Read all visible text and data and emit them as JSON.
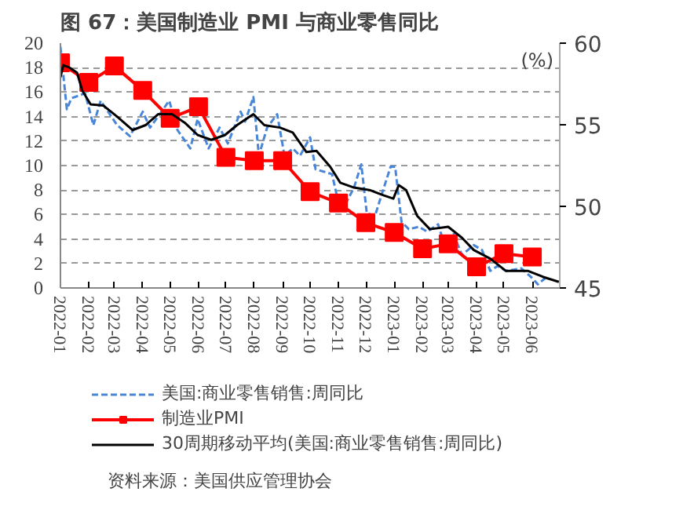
{
  "chart_data": {
    "type": "line",
    "title": "图 67：美国制造业 PMI 与商业零售同比",
    "y2label": "(%)",
    "annotations": [
      "资料来源：美国供应管理协会"
    ],
    "xlim": [
      "2022-01-01",
      "2023-07-01"
    ],
    "xticks": [
      "2022-01",
      "2022-02",
      "2022-03",
      "2022-04",
      "2022-05",
      "2022-06",
      "2022-07",
      "2022-08",
      "2022-09",
      "2022-10",
      "2022-11",
      "2022-12",
      "2023-01",
      "2023-02",
      "2023-03",
      "2023-04",
      "2023-05",
      "2023-06"
    ],
    "ylim": [
      0,
      20
    ],
    "yticks": [
      0,
      2,
      4,
      6,
      8,
      10,
      12,
      14,
      16,
      18,
      20
    ],
    "y2lim": [
      45,
      60
    ],
    "y2ticks": [
      45,
      50,
      55,
      60
    ],
    "grid": "y",
    "legend": "bottom",
    "series": [
      {
        "name": "美国:商业零售销售:周同比",
        "color": "#4a86d8",
        "line_style": "dashed",
        "marker": "none",
        "x": [
          "2022-01-01",
          "2022-01-08",
          "2022-01-13",
          "2022-01-28",
          "2022-02-06",
          "2022-02-14",
          "2022-03-04",
          "2022-03-18",
          "2022-04-01",
          "2022-04-09",
          "2022-04-30",
          "2022-05-09",
          "2022-05-23",
          "2022-05-31",
          "2022-06-12",
          "2022-06-24",
          "2022-07-03",
          "2022-07-17",
          "2022-07-22",
          "2022-07-31",
          "2022-08-06",
          "2022-08-15",
          "2022-08-26",
          "2022-09-03",
          "2022-09-12",
          "2022-09-20",
          "2022-10-01",
          "2022-10-07",
          "2022-10-16",
          "2022-10-25",
          "2022-10-31",
          "2022-11-09",
          "2022-11-18",
          "2022-11-26",
          "2022-12-02",
          "2022-12-11",
          "2022-12-19",
          "2022-12-28",
          "2023-01-02",
          "2023-01-09",
          "2023-01-17",
          "2023-01-28",
          "2023-02-06",
          "2023-02-18",
          "2023-02-23",
          "2023-03-07",
          "2023-03-16",
          "2023-03-29",
          "2023-04-07",
          "2023-04-16",
          "2023-04-24",
          "2023-05-03",
          "2023-05-20",
          "2023-06-01",
          "2023-06-07",
          "2023-06-15"
        ],
        "values": [
          19.7,
          14.6,
          15.5,
          15.9,
          13.3,
          15.3,
          13.3,
          12.4,
          14.4,
          13.1,
          15.3,
          12.9,
          11.4,
          13.8,
          11.4,
          13.1,
          11.8,
          14.4,
          13.6,
          15.6,
          10.8,
          13.1,
          14.2,
          10.8,
          11.4,
          10.8,
          12.3,
          9.7,
          9.5,
          9.3,
          7.3,
          6.9,
          8.2,
          10.1,
          6.1,
          5.9,
          7.8,
          9.9,
          9.9,
          5.4,
          4.8,
          5.0,
          4.6,
          5.2,
          4.0,
          4.4,
          2.7,
          3.5,
          3.1,
          1.4,
          1.8,
          1.4,
          1.6,
          0.8,
          0.3,
          0.8
        ]
      },
      {
        "name": "制造业PMI",
        "color": "#ff0000",
        "line_style": "solid",
        "marker": "square",
        "axis": "y2",
        "x": [
          "2022-01",
          "2022-02",
          "2022-03",
          "2022-04",
          "2022-05",
          "2022-06",
          "2022-07",
          "2022-08",
          "2022-09",
          "2022-10",
          "2022-11",
          "2022-12",
          "2023-01",
          "2023-02",
          "2023-03",
          "2023-04",
          "2023-05",
          "2023-06"
        ],
        "values": [
          58.8,
          57.6,
          58.6,
          57.1,
          55.4,
          56.1,
          53.0,
          52.8,
          52.8,
          50.9,
          50.2,
          49.0,
          48.4,
          47.4,
          47.7,
          46.3,
          47.1,
          46.9
        ]
      },
      {
        "name": "30周期移动平均(美国:商业零售销售:周同比)",
        "color": "#000000",
        "line_style": "solid",
        "marker": "none",
        "x": [
          "2022-01-01",
          "2022-01-04",
          "2022-01-11",
          "2022-01-19",
          "2022-01-25",
          "2022-02-03",
          "2022-02-17",
          "2022-03-04",
          "2022-03-21",
          "2022-04-04",
          "2022-04-18",
          "2022-05-03",
          "2022-05-17",
          "2022-05-31",
          "2022-06-15",
          "2022-06-30",
          "2022-07-13",
          "2022-07-31",
          "2022-08-12",
          "2022-08-29",
          "2022-09-12",
          "2022-09-27",
          "2022-10-08",
          "2022-10-23",
          "2022-11-03",
          "2022-11-18",
          "2022-12-05",
          "2022-12-19",
          "2022-12-31",
          "2023-01-06",
          "2023-01-14",
          "2023-01-26",
          "2023-02-09",
          "2023-03-01",
          "2023-03-16",
          "2023-03-29",
          "2023-04-16",
          "2023-05-03",
          "2023-05-27",
          "2023-06-13",
          "2023-06-30"
        ],
        "values": [
          17.2,
          18.2,
          18.0,
          17.6,
          16.1,
          15.0,
          14.9,
          14.0,
          12.9,
          13.3,
          14.2,
          14.2,
          13.5,
          12.5,
          12.1,
          12.5,
          13.3,
          14.2,
          13.3,
          13.1,
          12.7,
          11.1,
          11.2,
          9.9,
          8.6,
          8.2,
          8.0,
          7.6,
          7.3,
          8.4,
          8.0,
          5.9,
          4.8,
          5.0,
          4.1,
          3.1,
          2.4,
          1.4,
          1.4,
          0.9,
          0.5
        ]
      }
    ]
  }
}
